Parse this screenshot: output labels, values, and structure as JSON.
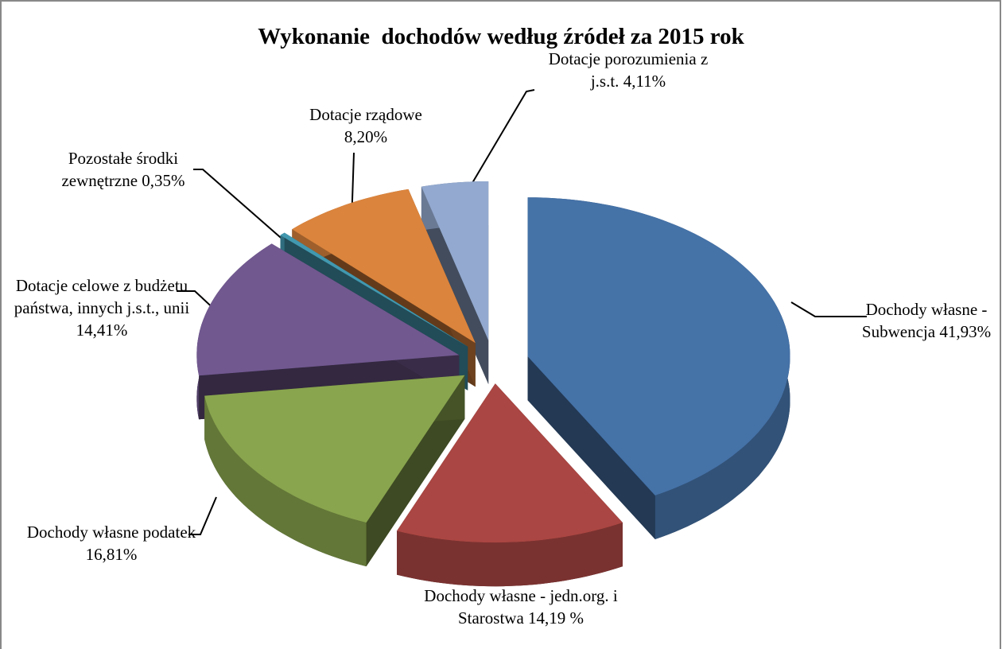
{
  "chart_data": {
    "type": "pie",
    "title": "Wykonanie  dochodów według źródeł za 2015 rok",
    "categories": [
      "Dochody własne - Subwencja",
      "Dochody własne - jedn.org. i Starostwa",
      "Dochody własne podatek",
      "Dotacje celowe z budżetu państwa, innych j.s.t., unii",
      "Pozostałe środki zewnętrzne",
      "Dotacje rządowe",
      "Dotacje porozumienia z j.s.t."
    ],
    "values": [
      41.93,
      14.19,
      16.81,
      14.41,
      0.35,
      8.2,
      4.11
    ],
    "value_labels": [
      "41,93%",
      "14,19 %",
      "16,81%",
      "14,41%",
      "0,35%",
      "8,20%",
      "4,11%"
    ],
    "colors": [
      "#4572a7",
      "#aa4643",
      "#89a54e",
      "#71588f",
      "#4198af",
      "#db843d",
      "#93a9cf"
    ]
  }
}
